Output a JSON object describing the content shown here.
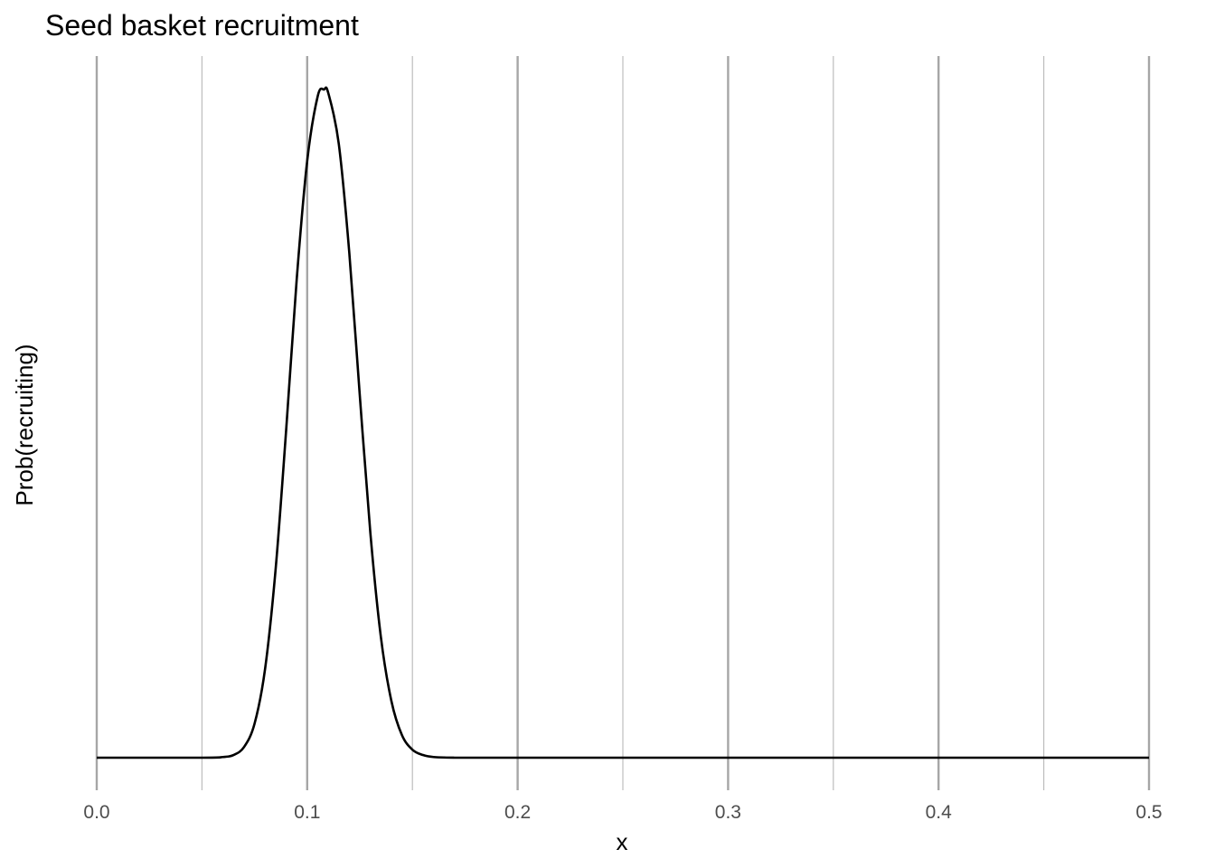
{
  "chart_data": {
    "type": "line",
    "title": "Seed basket recruitment",
    "xlabel": "x",
    "ylabel": "Prob(recruiting)",
    "xlim": [
      0,
      0.5
    ],
    "ylim": [
      0,
      1
    ],
    "x_major_ticks": [
      0.0,
      0.1,
      0.2,
      0.3,
      0.4,
      0.5
    ],
    "x_tick_labels": [
      "0.0",
      "0.1",
      "0.2",
      "0.3",
      "0.4",
      "0.5"
    ],
    "x_minor_ticks": [
      0.05,
      0.15,
      0.25,
      0.35,
      0.45
    ],
    "y_tick_labels": [],
    "grid": {
      "vertical": true,
      "horizontal": false
    },
    "legend": "none",
    "series": [
      {
        "color": "#000000",
        "x": [
          0.0,
          0.05,
          0.06,
          0.065,
          0.07,
          0.075,
          0.08,
          0.085,
          0.09,
          0.095,
          0.1,
          0.105,
          0.108,
          0.11,
          0.115,
          0.12,
          0.125,
          0.13,
          0.135,
          0.14,
          0.145,
          0.15,
          0.155,
          0.16,
          0.17,
          0.18,
          0.2,
          0.3,
          0.4,
          0.5
        ],
        "y": [
          0.0,
          0.0,
          0.001,
          0.004,
          0.016,
          0.051,
          0.133,
          0.282,
          0.49,
          0.715,
          0.893,
          0.99,
          1.0,
          0.995,
          0.919,
          0.756,
          0.542,
          0.337,
          0.181,
          0.085,
          0.034,
          0.012,
          0.004,
          0.001,
          0.0,
          0.0,
          0.0,
          0.0,
          0.0,
          0.0
        ]
      }
    ]
  },
  "colors": {
    "line": "#000000",
    "major_grid": "#a6a6a6",
    "minor_grid": "#bdbdbd",
    "tick_text": "#4d4d4d"
  }
}
